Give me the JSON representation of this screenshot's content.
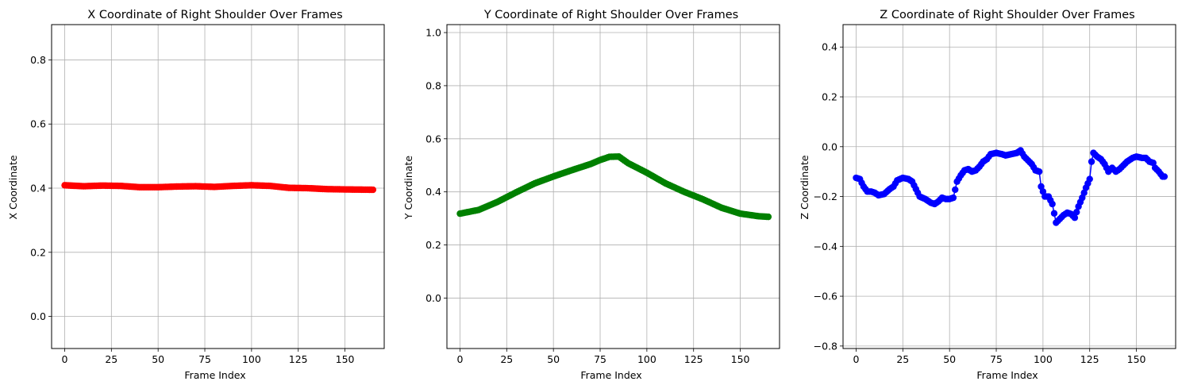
{
  "chart_data": [
    {
      "type": "scatter",
      "title": "X Coordinate of Right Shoulder Over Frames",
      "xlabel": "Frame Index",
      "ylabel": "X Coordinate",
      "xlim": [
        -7,
        171
      ],
      "ylim": [
        -0.1,
        0.91
      ],
      "xticks": [
        0,
        25,
        50,
        75,
        100,
        125,
        150
      ],
      "yticks": [
        0.0,
        0.2,
        0.4,
        0.6,
        0.8
      ],
      "ytick_labels": [
        "0.0",
        "0.2",
        "0.4",
        "0.6",
        "0.8"
      ],
      "grid": true,
      "color": "#ff0000",
      "marker": "o",
      "series": [
        {
          "x_start": 0,
          "x_end": 165,
          "anchors": [
            [
              0,
              0.409
            ],
            [
              10,
              0.406
            ],
            [
              20,
              0.408
            ],
            [
              30,
              0.407
            ],
            [
              40,
              0.403
            ],
            [
              50,
              0.403
            ],
            [
              60,
              0.405
            ],
            [
              70,
              0.406
            ],
            [
              80,
              0.404
            ],
            [
              90,
              0.407
            ],
            [
              100,
              0.409
            ],
            [
              110,
              0.407
            ],
            [
              120,
              0.401
            ],
            [
              130,
              0.4
            ],
            [
              140,
              0.397
            ],
            [
              150,
              0.396
            ],
            [
              165,
              0.395
            ]
          ]
        }
      ]
    },
    {
      "type": "scatter",
      "title": "Y Coordinate of Right Shoulder Over Frames",
      "xlabel": "Frame Index",
      "ylabel": "Y Coordinate",
      "xlim": [
        -7,
        171
      ],
      "ylim": [
        -0.19,
        1.03
      ],
      "xticks": [
        0,
        25,
        50,
        75,
        100,
        125,
        150
      ],
      "yticks": [
        0.0,
        0.2,
        0.4,
        0.6,
        0.8,
        1.0
      ],
      "ytick_labels": [
        "0.0",
        "0.2",
        "0.4",
        "0.6",
        "0.8",
        "1.0"
      ],
      "grid": true,
      "color": "#008000",
      "marker": "o",
      "series": [
        {
          "x_start": 0,
          "x_end": 165,
          "anchors": [
            [
              0,
              0.318
            ],
            [
              10,
              0.332
            ],
            [
              20,
              0.362
            ],
            [
              30,
              0.398
            ],
            [
              40,
              0.432
            ],
            [
              50,
              0.458
            ],
            [
              60,
              0.482
            ],
            [
              70,
              0.505
            ],
            [
              75,
              0.52
            ],
            [
              80,
              0.532
            ],
            [
              85,
              0.533
            ],
            [
              90,
              0.508
            ],
            [
              100,
              0.472
            ],
            [
              110,
              0.432
            ],
            [
              120,
              0.4
            ],
            [
              130,
              0.372
            ],
            [
              140,
              0.34
            ],
            [
              150,
              0.318
            ],
            [
              160,
              0.308
            ],
            [
              165,
              0.306
            ]
          ]
        }
      ]
    },
    {
      "type": "scatter",
      "title": "Z Coordinate of Right Shoulder Over Frames",
      "xlabel": "Frame Index",
      "ylabel": "Z Coordinate",
      "xlim": [
        -7,
        171
      ],
      "ylim": [
        -0.81,
        0.49
      ],
      "xticks": [
        0,
        25,
        50,
        75,
        100,
        125,
        150
      ],
      "yticks": [
        -0.8,
        -0.6,
        -0.4,
        -0.2,
        0.0,
        0.2,
        0.4
      ],
      "ytick_labels": [
        "−0.8",
        "−0.6",
        "−0.4",
        "−0.2",
        "0.0",
        "0.2",
        "0.4"
      ],
      "grid": true,
      "color": "#0000ff",
      "marker": "o",
      "series": [
        {
          "x_start": 0,
          "x_end": 165,
          "anchors": [
            [
              0,
              -0.125
            ],
            [
              2,
              -0.13
            ],
            [
              4,
              -0.16
            ],
            [
              6,
              -0.18
            ],
            [
              8,
              -0.18
            ],
            [
              10,
              -0.185
            ],
            [
              12,
              -0.195
            ],
            [
              15,
              -0.19
            ],
            [
              18,
              -0.17
            ],
            [
              20,
              -0.16
            ],
            [
              22,
              -0.135
            ],
            [
              25,
              -0.125
            ],
            [
              28,
              -0.13
            ],
            [
              30,
              -0.14
            ],
            [
              32,
              -0.17
            ],
            [
              34,
              -0.2
            ],
            [
              37,
              -0.21
            ],
            [
              40,
              -0.225
            ],
            [
              42,
              -0.23
            ],
            [
              44,
              -0.22
            ],
            [
              46,
              -0.205
            ],
            [
              48,
              -0.21
            ],
            [
              50,
              -0.21
            ],
            [
              52,
              -0.205
            ],
            [
              54,
              -0.14
            ],
            [
              56,
              -0.115
            ],
            [
              58,
              -0.095
            ],
            [
              60,
              -0.09
            ],
            [
              62,
              -0.1
            ],
            [
              64,
              -0.095
            ],
            [
              66,
              -0.08
            ],
            [
              68,
              -0.06
            ],
            [
              70,
              -0.05
            ],
            [
              72,
              -0.03
            ],
            [
              75,
              -0.025
            ],
            [
              78,
              -0.03
            ],
            [
              80,
              -0.035
            ],
            [
              83,
              -0.03
            ],
            [
              86,
              -0.025
            ],
            [
              88,
              -0.015
            ],
            [
              90,
              -0.04
            ],
            [
              92,
              -0.055
            ],
            [
              94,
              -0.07
            ],
            [
              96,
              -0.095
            ],
            [
              98,
              -0.1
            ],
            [
              99,
              -0.16
            ],
            [
              101,
              -0.2
            ],
            [
              103,
              -0.2
            ],
            [
              105,
              -0.23
            ],
            [
              107,
              -0.305
            ],
            [
              109,
              -0.29
            ],
            [
              111,
              -0.275
            ],
            [
              113,
              -0.265
            ],
            [
              115,
              -0.27
            ],
            [
              117,
              -0.285
            ],
            [
              119,
              -0.24
            ],
            [
              121,
              -0.205
            ],
            [
              123,
              -0.165
            ],
            [
              125,
              -0.13
            ],
            [
              126,
              -0.06
            ],
            [
              127,
              -0.025
            ],
            [
              129,
              -0.04
            ],
            [
              131,
              -0.05
            ],
            [
              133,
              -0.07
            ],
            [
              135,
              -0.1
            ],
            [
              137,
              -0.085
            ],
            [
              139,
              -0.1
            ],
            [
              141,
              -0.09
            ],
            [
              143,
              -0.075
            ],
            [
              145,
              -0.06
            ],
            [
              148,
              -0.045
            ],
            [
              150,
              -0.04
            ],
            [
              153,
              -0.045
            ],
            [
              155,
              -0.045
            ],
            [
              157,
              -0.06
            ],
            [
              159,
              -0.065
            ],
            [
              160,
              -0.085
            ],
            [
              162,
              -0.1
            ],
            [
              164,
              -0.12
            ],
            [
              165,
              -0.12
            ]
          ]
        }
      ]
    }
  ]
}
